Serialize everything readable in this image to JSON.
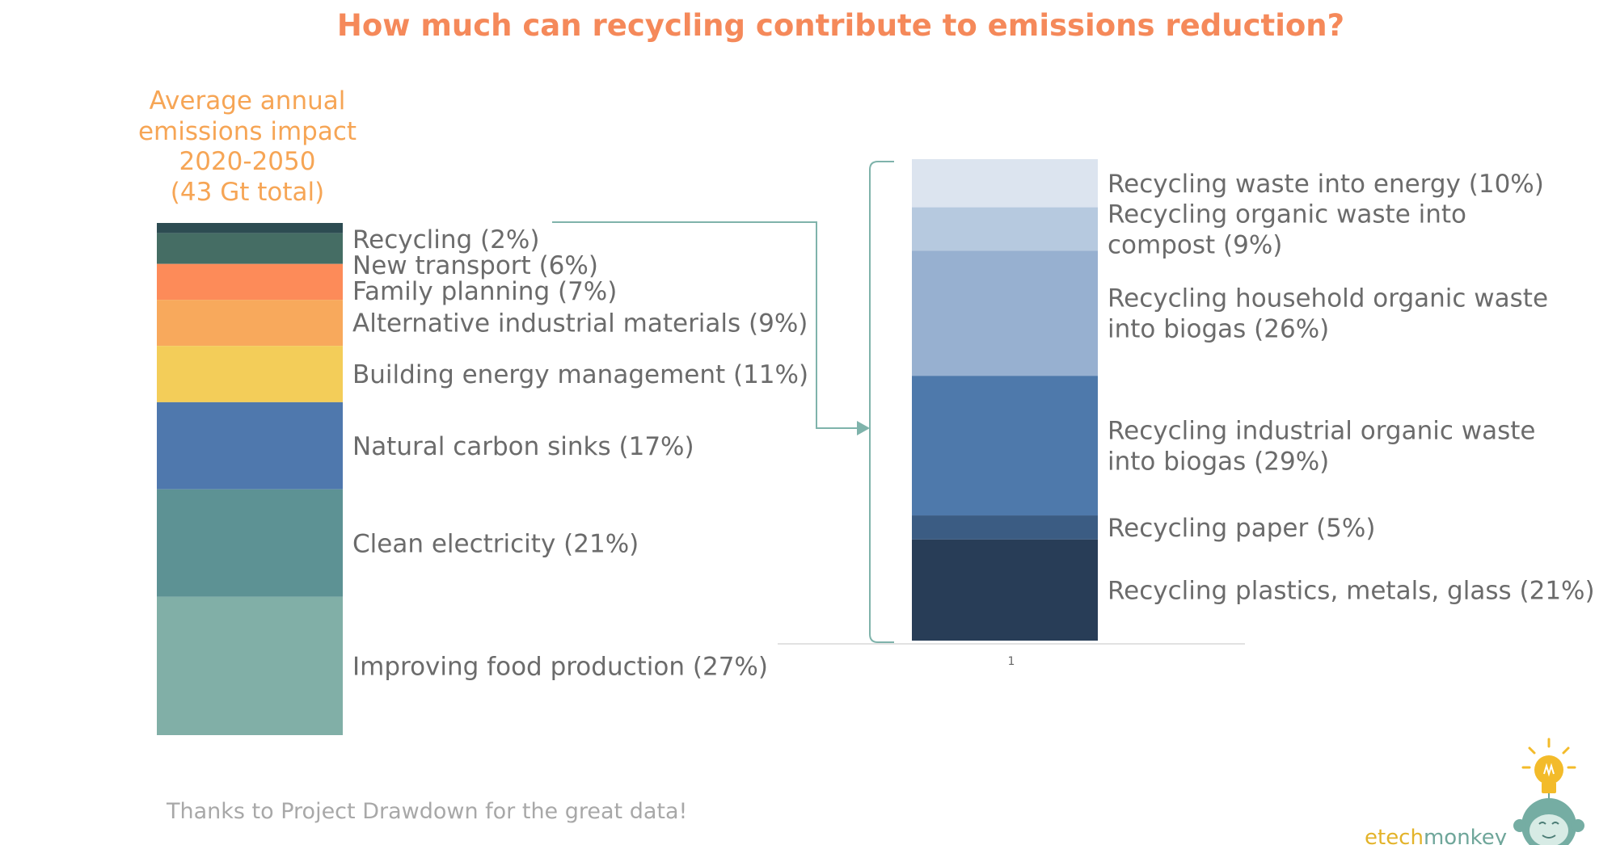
{
  "title": "How much can recycling contribute to emissions reduction?",
  "left_heading": [
    "Average annual",
    "emissions impact",
    "2020-2050",
    "(43 Gt total)"
  ],
  "footer": "Thanks to Project Drawdown for the great data!",
  "brand": {
    "part1": "etech",
    "part2": "monkey"
  },
  "colors": {
    "title": "#f5895a",
    "heading": "#f6a555",
    "label": "#6b6b6b",
    "connector": "#7fb3ab"
  },
  "chart_data": [
    {
      "type": "bar",
      "stacked": true,
      "categories": [
        ""
      ],
      "series": [
        {
          "name": "Recycling",
          "display": "Recycling (2%)",
          "values": [
            2
          ],
          "color": "#2d4c52"
        },
        {
          "name": "New transport",
          "display": "New transport (6%)",
          "values": [
            6
          ],
          "color": "#456d64"
        },
        {
          "name": "Family planning",
          "display": "Family planning (7%)",
          "values": [
            7
          ],
          "color": "#fd8b59"
        },
        {
          "name": "Alternative industrial materials",
          "display": "Alternative industrial materials (9%)",
          "values": [
            9
          ],
          "color": "#f8a95c"
        },
        {
          "name": "Building energy management",
          "display": "Building energy management (11%)",
          "values": [
            11
          ],
          "color": "#f3cd59"
        },
        {
          "name": "Natural carbon sinks",
          "display": "Natural carbon sinks (17%)",
          "values": [
            17
          ],
          "color": "#4f78ad"
        },
        {
          "name": "Clean electricity",
          "display": "Clean electricity (21%)",
          "values": [
            21
          ],
          "color": "#5d9294"
        },
        {
          "name": "Improving food production",
          "display": "Improving food production (27%)",
          "values": [
            27
          ],
          "color": "#81afa7"
        }
      ]
    },
    {
      "type": "bar",
      "stacked": true,
      "categories": [
        "1"
      ],
      "series": [
        {
          "name": "Recycling waste into energy",
          "display": [
            "Recycling waste into energy (10%)"
          ],
          "values": [
            10
          ],
          "color": "#dce4ef"
        },
        {
          "name": "Recycling organic waste into compost",
          "display": [
            "Recycling organic waste into",
            "compost (9%)"
          ],
          "values": [
            9
          ],
          "color": "#b6c9df"
        },
        {
          "name": "Recycling household organic waste into biogas",
          "display": [
            "Recycling household organic waste",
            "into biogas (26%)"
          ],
          "values": [
            26
          ],
          "color": "#97b0d0"
        },
        {
          "name": "Recycling industrial organic waste into biogas",
          "display": [
            "Recycling industrial organic waste",
            "into biogas (29%)"
          ],
          "values": [
            29
          ],
          "color": "#4e79ab"
        },
        {
          "name": "Recycling paper",
          "display": [
            "Recycling paper (5%)"
          ],
          "values": [
            5
          ],
          "color": "#3b5c83"
        },
        {
          "name": "Recycling plastics, metals, glass",
          "display": [
            "Recycling plastics, metals, glass (21%)"
          ],
          "values": [
            21
          ],
          "color": "#283d57"
        }
      ]
    }
  ]
}
